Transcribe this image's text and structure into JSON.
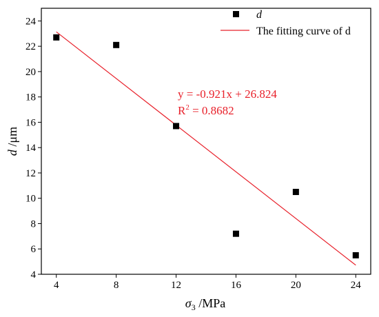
{
  "chart_data": {
    "type": "scatter",
    "xlabel": {
      "symbol": "σ",
      "subscript": "3",
      "unit": " /MPa"
    },
    "ylabel": {
      "symbol": "d",
      "unit": " /μm"
    },
    "x_ticks": [
      4,
      8,
      12,
      16,
      20,
      24
    ],
    "y_ticks": [
      4,
      6,
      8,
      10,
      12,
      14,
      16,
      18,
      20,
      22,
      24
    ],
    "xlim": [
      3,
      25
    ],
    "ylim": [
      4,
      25
    ],
    "grid": false,
    "legend_position": "top-right",
    "series": [
      {
        "name": "d",
        "kind": "scatter",
        "marker": "square",
        "color": "#000000",
        "points": [
          {
            "x": 4,
            "y": 22.7
          },
          {
            "x": 8,
            "y": 22.1
          },
          {
            "x": 12,
            "y": 15.7
          },
          {
            "x": 16,
            "y": 7.2
          },
          {
            "x": 20,
            "y": 10.5
          },
          {
            "x": 24,
            "y": 5.5
          }
        ]
      },
      {
        "name": "The fitting curve of d",
        "kind": "line",
        "color": "#e8202a",
        "slope": -0.921,
        "intercept": 26.824,
        "x_range": [
          4,
          24
        ]
      }
    ],
    "annotations": {
      "equation": "y = -0.921x + 26.824",
      "r2_prefix": "R",
      "r2_exponent": "2",
      "r2_value": " = 0.8682"
    }
  }
}
